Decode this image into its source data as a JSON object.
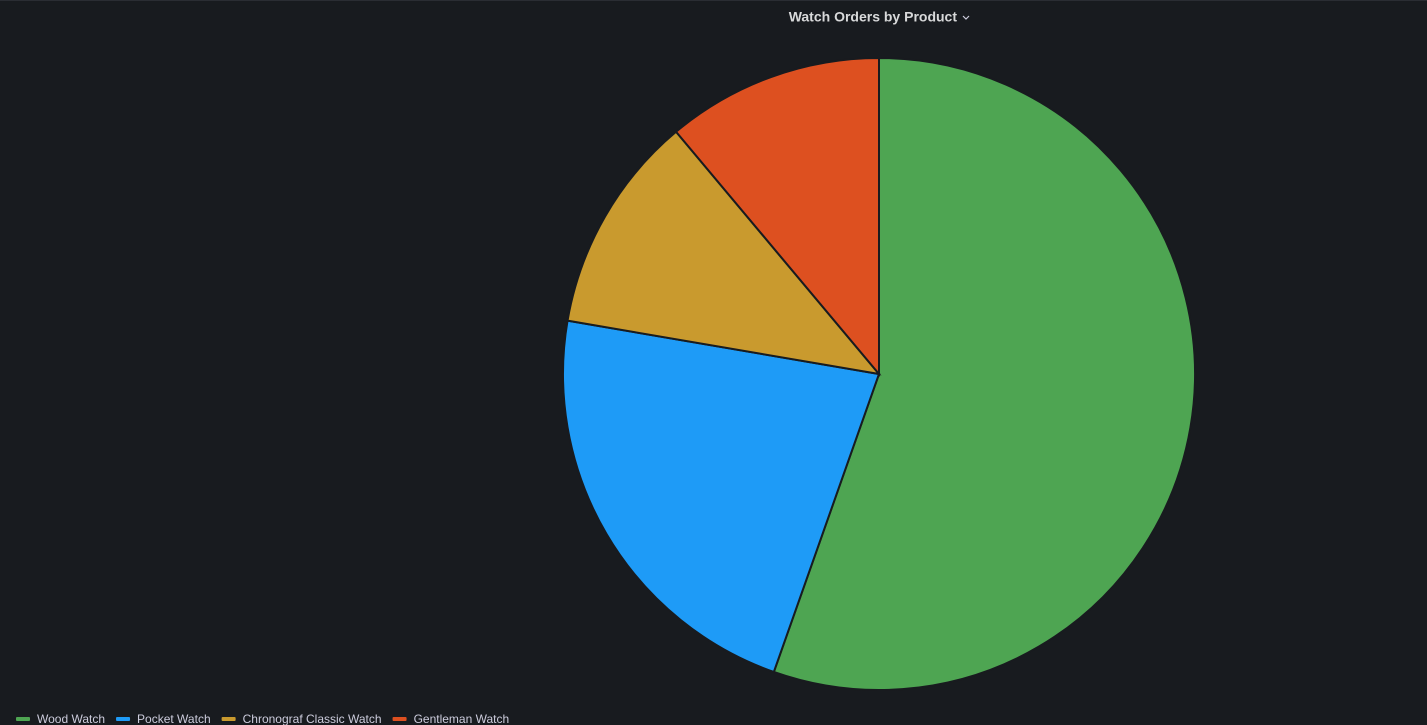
{
  "chart_data": {
    "type": "pie",
    "title": "Watch Orders by Product",
    "categories": [
      "Wood Watch",
      "Pocket Watch",
      "Chronograf Classic Watch",
      "Gentleman Watch"
    ],
    "values": [
      55.4,
      22.3,
      11.2,
      11.1
    ],
    "colors": [
      "#4ea552",
      "#1e9bf7",
      "#c99a2e",
      "#dd5020"
    ],
    "legend": "bottom-left"
  }
}
